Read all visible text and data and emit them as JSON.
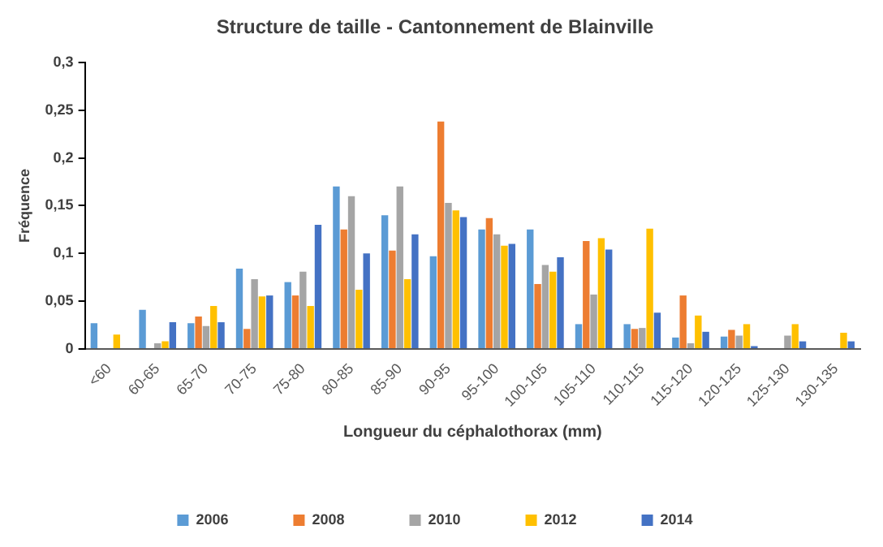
{
  "chart_data": {
    "type": "bar",
    "title": "Structure de taille - Cantonnement de Blainville",
    "xlabel": "Longueur du céphalothorax (mm)",
    "ylabel": "Fréquence",
    "categories": [
      "<60",
      "60-65",
      "65-70",
      "70-75",
      "75-80",
      "80-85",
      "85-90",
      "90-95",
      "95-100",
      "100-105",
      "105-110",
      "110-115",
      "115-120",
      "120-125",
      "125-130",
      "130-135"
    ],
    "series": [
      {
        "name": "2006",
        "color": "#5b9bd5",
        "values": [
          0.027,
          0.041,
          0.027,
          0.084,
          0.07,
          0.17,
          0.14,
          0.097,
          0.125,
          0.125,
          0.026,
          0.026,
          0.012,
          0.013,
          0,
          0
        ]
      },
      {
        "name": "2008",
        "color": "#ed7d31",
        "values": [
          0,
          0,
          0.034,
          0.021,
          0.056,
          0.125,
          0.103,
          0.238,
          0.137,
          0.068,
          0.113,
          0.021,
          0.056,
          0.02,
          0,
          0
        ]
      },
      {
        "name": "2010",
        "color": "#a5a5a5",
        "values": [
          0,
          0.006,
          0.024,
          0.073,
          0.081,
          0.16,
          0.17,
          0.153,
          0.12,
          0.088,
          0.057,
          0.022,
          0.006,
          0.014,
          0.014,
          0
        ]
      },
      {
        "name": "2012",
        "color": "#ffc000",
        "values": [
          0.015,
          0.008,
          0.045,
          0.055,
          0.045,
          0.062,
          0.073,
          0.145,
          0.108,
          0.081,
          0.116,
          0.126,
          0.035,
          0.026,
          0.026,
          0.017
        ]
      },
      {
        "name": "2014",
        "color": "#4472c4",
        "values": [
          0,
          0.028,
          0.028,
          0.056,
          0.13,
          0.1,
          0.12,
          0.138,
          0.11,
          0.096,
          0.104,
          0.038,
          0.018,
          0.003,
          0.008,
          0.008
        ]
      }
    ],
    "ylim": [
      0,
      0.3
    ],
    "yticks": [
      {
        "value": 0,
        "label": "0"
      },
      {
        "value": 0.05,
        "label": "0,05"
      },
      {
        "value": 0.1,
        "label": "0,1"
      },
      {
        "value": 0.15,
        "label": "0,15"
      },
      {
        "value": 0.2,
        "label": "0,2"
      },
      {
        "value": 0.25,
        "label": "0,25"
      },
      {
        "value": 0.3,
        "label": "0,3"
      }
    ],
    "grid": false,
    "legend": "bottom"
  }
}
